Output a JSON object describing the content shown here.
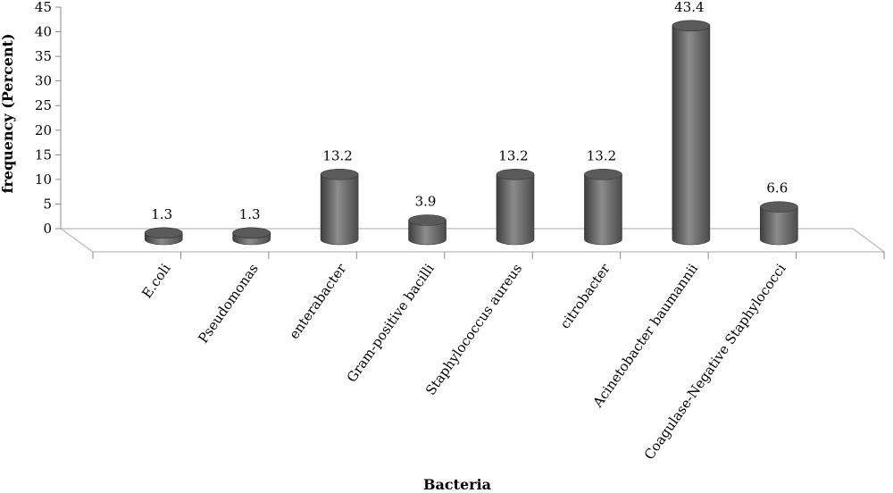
{
  "chart_data": {
    "type": "bar",
    "categories": [
      "E.coli",
      "Pseudomonas",
      "enterabacter",
      "Gram-positive bacilli",
      "Staphylococcus aureus",
      "citrobacter",
      "Acinetobacter baumannii",
      "Coagulase-Negative Staphylococci"
    ],
    "values": [
      1.3,
      1.3,
      13.2,
      3.9,
      13.2,
      13.2,
      43.4,
      6.6
    ],
    "value_labels": [
      "1.3",
      "1.3",
      "13.2",
      "3.9",
      "13.2",
      "13.2",
      "43.4",
      "6.6"
    ],
    "xlabel": "Bacteria",
    "ylabel": "frequency (Percent)",
    "ylim": [
      0,
      45
    ],
    "yticks": [
      "0",
      "5",
      "10",
      "15",
      "20",
      "25",
      "30",
      "35",
      "40",
      "45"
    ],
    "grid": false,
    "legend": "none",
    "bar_shape": "cylinder",
    "bar_color": "#6d6d6d"
  }
}
